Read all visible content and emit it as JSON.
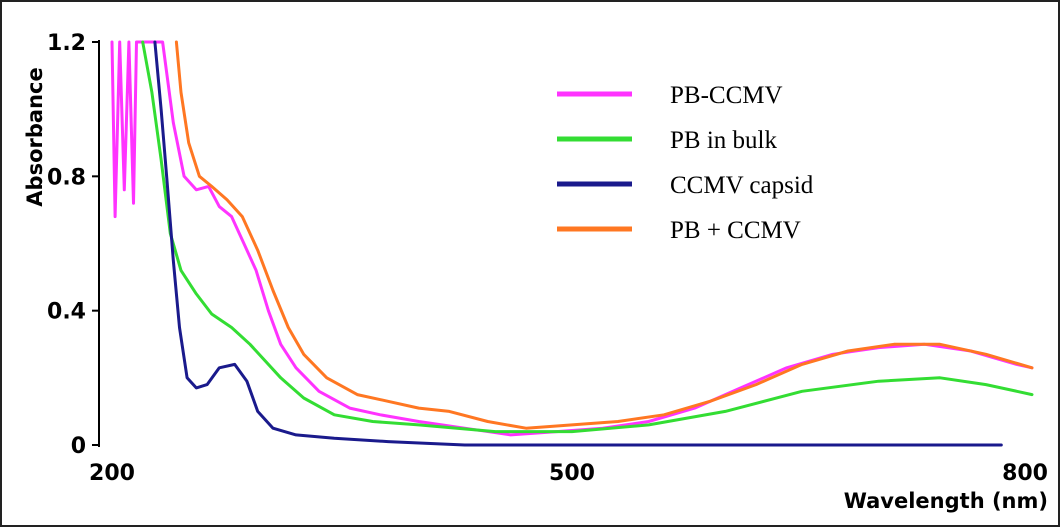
{
  "chart_data": {
    "type": "line",
    "title": "",
    "xlabel": "Wavelength (nm)",
    "ylabel": "Absorbance",
    "xlim": [
      200,
      800
    ],
    "ylim": [
      0,
      1.2
    ],
    "x_ticks": [
      "200",
      "500",
      "800"
    ],
    "y_ticks": [
      "0",
      "0.4",
      "0.8",
      "1.2"
    ],
    "grid": false,
    "legend_position": "top-right",
    "series": [
      {
        "name": "PB-CCMV",
        "color": "#ff33ff",
        "points": [
          [
            200,
            1.2
          ],
          [
            202,
            0.68
          ],
          [
            205,
            1.2
          ],
          [
            208,
            0.76
          ],
          [
            211,
            1.2
          ],
          [
            214,
            0.72
          ],
          [
            216,
            1.2
          ],
          [
            233,
            1.2
          ],
          [
            240,
            0.96
          ],
          [
            247,
            0.8
          ],
          [
            255,
            0.76
          ],
          [
            263,
            0.77
          ],
          [
            270,
            0.71
          ],
          [
            278,
            0.68
          ],
          [
            286,
            0.6
          ],
          [
            294,
            0.52
          ],
          [
            302,
            0.4
          ],
          [
            310,
            0.3
          ],
          [
            320,
            0.23
          ],
          [
            335,
            0.16
          ],
          [
            355,
            0.11
          ],
          [
            375,
            0.09
          ],
          [
            400,
            0.07
          ],
          [
            430,
            0.05
          ],
          [
            460,
            0.03
          ],
          [
            490,
            0.04
          ],
          [
            520,
            0.05
          ],
          [
            550,
            0.07
          ],
          [
            580,
            0.11
          ],
          [
            610,
            0.17
          ],
          [
            640,
            0.23
          ],
          [
            670,
            0.27
          ],
          [
            700,
            0.29
          ],
          [
            730,
            0.3
          ],
          [
            760,
            0.28
          ],
          [
            790,
            0.24
          ],
          [
            800,
            0.23
          ]
        ]
      },
      {
        "name": "PB in bulk",
        "color": "#33dd33",
        "points": [
          [
            220,
            1.2
          ],
          [
            226,
            1.05
          ],
          [
            232,
            0.85
          ],
          [
            238,
            0.63
          ],
          [
            245,
            0.52
          ],
          [
            255,
            0.45
          ],
          [
            265,
            0.39
          ],
          [
            278,
            0.35
          ],
          [
            290,
            0.3
          ],
          [
            300,
            0.25
          ],
          [
            310,
            0.2
          ],
          [
            325,
            0.14
          ],
          [
            345,
            0.09
          ],
          [
            370,
            0.07
          ],
          [
            400,
            0.06
          ],
          [
            450,
            0.04
          ],
          [
            500,
            0.04
          ],
          [
            550,
            0.06
          ],
          [
            600,
            0.1
          ],
          [
            650,
            0.16
          ],
          [
            700,
            0.19
          ],
          [
            740,
            0.2
          ],
          [
            770,
            0.18
          ],
          [
            800,
            0.15
          ]
        ]
      },
      {
        "name": "CCMV capsid",
        "color": "#1a1a8c",
        "points": [
          [
            228,
            1.2
          ],
          [
            232,
            1.0
          ],
          [
            236,
            0.78
          ],
          [
            240,
            0.55
          ],
          [
            244,
            0.35
          ],
          [
            249,
            0.2
          ],
          [
            255,
            0.17
          ],
          [
            262,
            0.18
          ],
          [
            270,
            0.23
          ],
          [
            280,
            0.24
          ],
          [
            288,
            0.19
          ],
          [
            295,
            0.1
          ],
          [
            305,
            0.05
          ],
          [
            320,
            0.03
          ],
          [
            345,
            0.02
          ],
          [
            380,
            0.01
          ],
          [
            430,
            0.0
          ],
          [
            500,
            0.0
          ],
          [
            600,
            0.0
          ],
          [
            700,
            0.0
          ],
          [
            780,
            0.0
          ]
        ]
      },
      {
        "name": "PB + CCMV",
        "color": "#ff7722",
        "points": [
          [
            242,
            1.2
          ],
          [
            245,
            1.05
          ],
          [
            250,
            0.9
          ],
          [
            257,
            0.8
          ],
          [
            265,
            0.77
          ],
          [
            275,
            0.73
          ],
          [
            285,
            0.68
          ],
          [
            295,
            0.58
          ],
          [
            305,
            0.46
          ],
          [
            315,
            0.35
          ],
          [
            325,
            0.27
          ],
          [
            340,
            0.2
          ],
          [
            360,
            0.15
          ],
          [
            380,
            0.13
          ],
          [
            400,
            0.11
          ],
          [
            420,
            0.1
          ],
          [
            445,
            0.07
          ],
          [
            470,
            0.05
          ],
          [
            500,
            0.06
          ],
          [
            530,
            0.07
          ],
          [
            560,
            0.09
          ],
          [
            590,
            0.13
          ],
          [
            620,
            0.18
          ],
          [
            650,
            0.24
          ],
          [
            680,
            0.28
          ],
          [
            710,
            0.3
          ],
          [
            740,
            0.3
          ],
          [
            770,
            0.27
          ],
          [
            800,
            0.23
          ]
        ]
      }
    ]
  }
}
